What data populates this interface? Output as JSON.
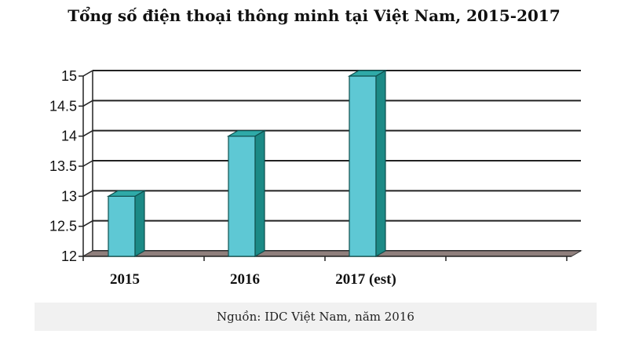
{
  "chart_data": {
    "type": "bar",
    "title": "Tổng số điện thoại thông minh tại Việt Nam, 2015-2017",
    "categories": [
      "2015",
      "2016",
      "2017 (est)"
    ],
    "values": [
      13,
      14,
      15
    ],
    "ylim": [
      12,
      15
    ],
    "yticks": [
      "12",
      "12.5",
      "13",
      "13.5",
      "14",
      "14.5",
      "15"
    ],
    "xlabel": "",
    "ylabel": "",
    "grid": true,
    "bar_color": "#5ec8d4",
    "bar_side_color": "#1c8a86",
    "bar_top_color": "#2faaa8",
    "floor_color": "#8f7f7c"
  },
  "source": "Nguồn: IDC Việt Nam, năm 2016"
}
